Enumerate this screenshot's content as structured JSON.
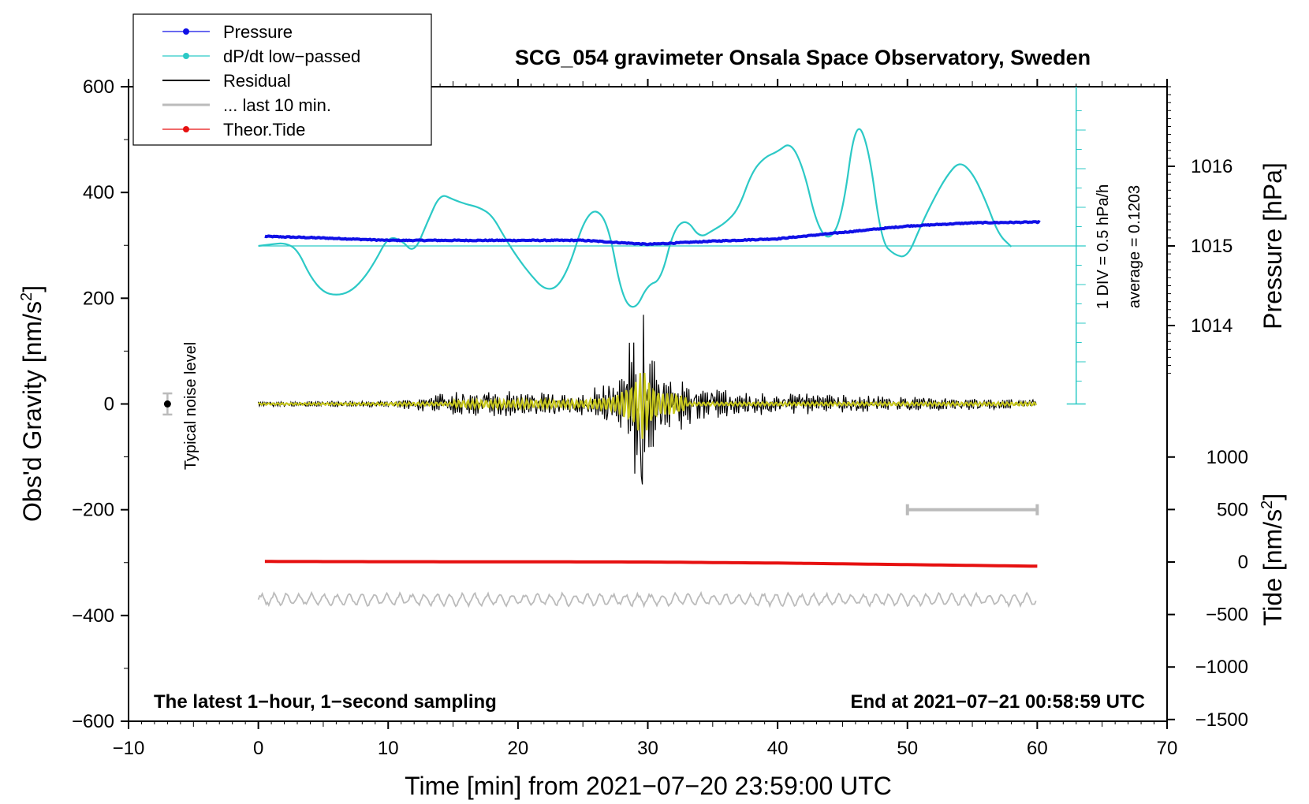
{
  "chart_data": {
    "type": "line",
    "title": "SCG_054 gravimeter Onsala Space Observatory, Sweden",
    "xlabel": "Time [min] from 2021−07−20 23:59:00 UTC",
    "ylabel_left": "Obs'd Gravity [nm/s",
    "ylabel_left_sup": "2",
    "ylabel_left_end": "]",
    "ylabel_right_pressure": "Pressure [hPa]",
    "ylabel_right_tide": "Tide [nm/s",
    "ylabel_right_tide_sup": "2",
    "ylabel_right_tide_end": "]",
    "xlim": [
      -10,
      70
    ],
    "ylim_left": [
      -600,
      600
    ],
    "x_ticks": [
      "−10",
      "0",
      "10",
      "20",
      "30",
      "40",
      "50",
      "60",
      "70"
    ],
    "y_left_ticks": [
      "600",
      "400",
      "200",
      "0",
      "−200",
      "−400",
      "−600"
    ],
    "pressure_ticks": [
      "1016",
      "1015",
      "1014"
    ],
    "tide_ticks": [
      "1000",
      "500",
      "0",
      "−500",
      "−1000",
      "−1500"
    ],
    "legend": [
      "Pressure",
      "dP/dt low−passed",
      "Residual",
      "... last 10 min.",
      "Theor.Tide"
    ],
    "legend_position": "top-left",
    "annotations": {
      "noise": "Typical noise level",
      "div": "1 DIV = 0.5 hPa/h",
      "average": "average = 0.1203",
      "bottom_left": "The latest 1−hour, 1−second sampling",
      "bottom_right": "End at 2021−07−21 00:58:59 UTC"
    },
    "series": [
      {
        "name": "Pressure",
        "unit": "hPa",
        "x": [
          0.5,
          5,
          10,
          15,
          20,
          25,
          30,
          35,
          40,
          45,
          50,
          55,
          60.3
        ],
        "values": [
          1015.12,
          1015.1,
          1015.07,
          1015.07,
          1015.07,
          1015.07,
          1015.02,
          1015.06,
          1015.09,
          1015.17,
          1015.25,
          1015.29,
          1015.3
        ]
      },
      {
        "name": "dP/dt low−passed",
        "unit": "hPa/h",
        "x": [
          0,
          1,
          2,
          3,
          4,
          5,
          6,
          7,
          8,
          9,
          10,
          11,
          12,
          13,
          14,
          15,
          16,
          17,
          18,
          19,
          20,
          21,
          22,
          23,
          24,
          25,
          26,
          27,
          28,
          29,
          30,
          31,
          32,
          33,
          34,
          35,
          36,
          37,
          38,
          39,
          40,
          41,
          42,
          43,
          44,
          45,
          46,
          47,
          48,
          49,
          50,
          51,
          52,
          53,
          54,
          55,
          56,
          57,
          58
        ],
        "values": [
          0.0,
          0.02,
          0.04,
          -0.04,
          -0.4,
          -0.6,
          -0.64,
          -0.6,
          -0.45,
          -0.2,
          0.12,
          0.08,
          -0.1,
          0.3,
          0.68,
          0.6,
          0.54,
          0.5,
          0.4,
          0.1,
          -0.16,
          -0.38,
          -0.56,
          -0.55,
          -0.25,
          0.3,
          0.5,
          0.25,
          -0.66,
          -0.85,
          -0.5,
          -0.45,
          0.22,
          0.35,
          0.1,
          0.2,
          0.3,
          0.48,
          0.95,
          1.15,
          1.22,
          1.35,
          1.0,
          0.28,
          0.05,
          0.4,
          1.65,
          1.3,
          0.05,
          -0.12,
          -0.15,
          0.25,
          0.6,
          0.9,
          1.1,
          0.95,
          0.6,
          0.15,
          -0.01
        ]
      },
      {
        "name": "Residual",
        "unit": "nm/s^2",
        "x": [
          0,
          10,
          15,
          20,
          25,
          28,
          29.2,
          29.4,
          30,
          31,
          32,
          35,
          40,
          45,
          50,
          55,
          60
        ],
        "amplitude": [
          4,
          6,
          20,
          20,
          18,
          40,
          200,
          -195,
          130,
          55,
          65,
          28,
          18,
          15,
          12,
          10,
          8
        ]
      },
      {
        "name": "... last 10 min.",
        "unit": "nm/s^2",
        "x": [
          0,
          60
        ],
        "offset": -370,
        "amplitude": 10
      },
      {
        "name": "Theor.Tide",
        "unit": "nm/s^2",
        "x": [
          0.5,
          10,
          20,
          30,
          40,
          50,
          60.3
        ],
        "values": [
          5,
          3,
          2,
          0,
          -10,
          -25,
          -40
        ]
      }
    ],
    "noise_level": {
      "x": -7,
      "value": 0,
      "error": 20
    },
    "last10_bar": {
      "x": [
        50,
        60
      ],
      "value": -200
    }
  }
}
